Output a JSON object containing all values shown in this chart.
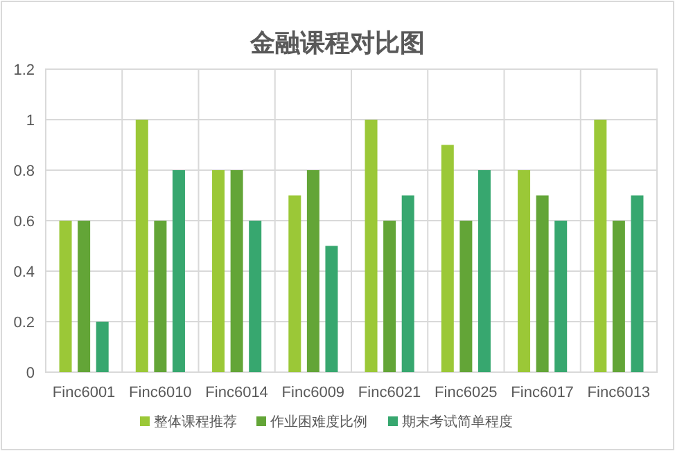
{
  "chart_data": {
    "type": "bar",
    "title": "金融课程对比图",
    "categories": [
      "Finc6001",
      "Finc6010",
      "Finc6014",
      "Finc6009",
      "Finc6021",
      "Finc6025",
      "Finc6017",
      "Finc6013"
    ],
    "series": [
      {
        "name": "整体课程推荐",
        "color": "#9bc837",
        "values": [
          0.6,
          1,
          0.8,
          0.7,
          1,
          0.9,
          0.8,
          1
        ]
      },
      {
        "name": "作业困难度比例",
        "color": "#63a537",
        "values": [
          0.6,
          0.6,
          0.8,
          0.8,
          0.6,
          0.6,
          0.7,
          0.6
        ]
      },
      {
        "name": "期末考试简单程度",
        "color": "#37a76f",
        "values": [
          0.2,
          0.8,
          0.6,
          0.5,
          0.7,
          0.8,
          0.6,
          0.7
        ]
      }
    ],
    "ylim": [
      0,
      1.2
    ],
    "yticks": [
      0,
      0.2,
      0.4,
      0.6,
      0.8,
      1,
      1.2
    ],
    "grid": true,
    "legend": "bottom"
  }
}
